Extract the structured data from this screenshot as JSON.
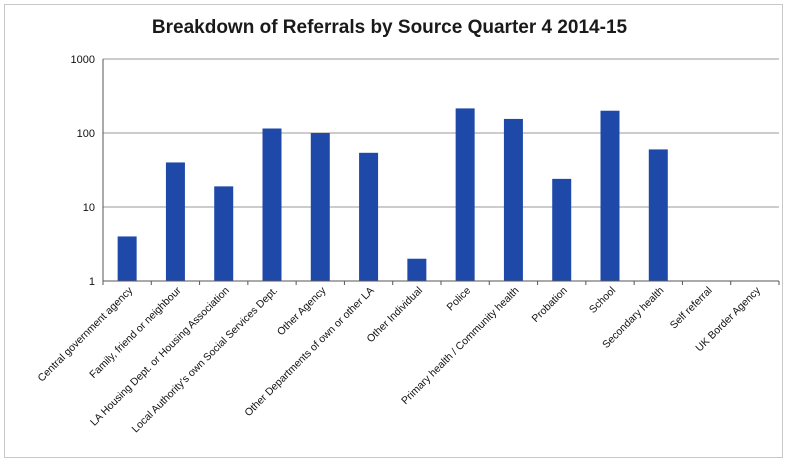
{
  "chart_data": {
    "type": "bar",
    "title": "Breakdown of Referrals by Source Quarter 4 2014-15",
    "yscale": "log",
    "ylim": [
      1,
      1000
    ],
    "yticks": [
      "1",
      "10",
      "100",
      "1000"
    ],
    "grid": true,
    "categories": [
      "Central government agency",
      "Family, friend or neighbour",
      "LA Housing Dept. or Housing Association",
      "Local Authority's own Social Services Dept.",
      "Other Agency",
      "Other Departments of own or other LA",
      "Other Individual",
      "Police",
      "Primary health / Community health",
      "Probation",
      "School",
      "Secondary health",
      "Self referral",
      "UK Border Agency"
    ],
    "values": [
      4,
      40,
      19,
      115,
      100,
      54,
      2,
      215,
      155,
      24,
      200,
      60,
      0,
      0
    ],
    "bar_color": "#1f49a8"
  }
}
